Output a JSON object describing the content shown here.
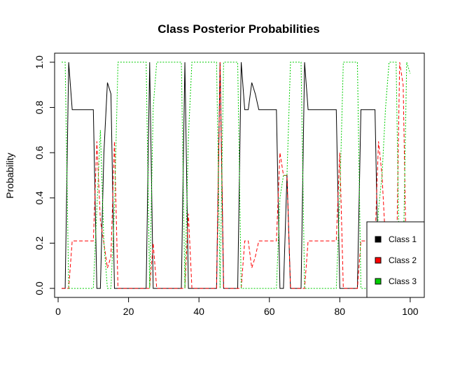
{
  "chart_data": {
    "type": "line",
    "title": "Class Posterior Probabilities",
    "xlabel": "",
    "ylabel": "Probability",
    "xlim": [
      -1,
      104
    ],
    "ylim": [
      -0.04,
      1.04
    ],
    "x_ticks": [
      0,
      20,
      40,
      60,
      80,
      100
    ],
    "x_tick_labels": [
      "0",
      "20",
      "40",
      "60",
      "80",
      "100"
    ],
    "y_ticks": [
      0.0,
      0.2,
      0.4,
      0.6,
      0.8,
      1.0
    ],
    "y_tick_labels": [
      "0.0",
      "0.2",
      "0.4",
      "0.6",
      "0.8",
      "1.0"
    ],
    "grid": false,
    "legend": {
      "position": "bottom-right",
      "entries": [
        {
          "label": "Class 1",
          "color": "#000000"
        },
        {
          "label": "Class 2",
          "color": "#ff0000"
        },
        {
          "label": "Class 3",
          "color": "#00cd00"
        }
      ]
    },
    "x": [
      1,
      2,
      3,
      4,
      5,
      6,
      7,
      8,
      9,
      10,
      11,
      12,
      13,
      14,
      15,
      16,
      17,
      18,
      19,
      20,
      21,
      22,
      23,
      24,
      25,
      26,
      27,
      28,
      29,
      30,
      31,
      32,
      33,
      34,
      35,
      36,
      37,
      38,
      39,
      40,
      41,
      42,
      43,
      44,
      45,
      46,
      47,
      48,
      49,
      50,
      51,
      52,
      53,
      54,
      55,
      56,
      57,
      58,
      59,
      60,
      61,
      62,
      63,
      64,
      65,
      66,
      67,
      68,
      69,
      70,
      71,
      72,
      73,
      74,
      75,
      76,
      77,
      78,
      79,
      80,
      81,
      82,
      83,
      84,
      85,
      86,
      87,
      88,
      89,
      90,
      91,
      92,
      93,
      94,
      95,
      96,
      97,
      98,
      99,
      100
    ],
    "series": [
      {
        "name": "Class 1",
        "color": "#000000",
        "dash": "solid",
        "values": [
          0,
          0,
          1,
          0.79,
          0.79,
          0.79,
          0.79,
          0.79,
          0.79,
          0.79,
          0,
          0,
          0.6,
          0.91,
          0.86,
          0,
          0,
          0,
          0,
          0,
          0,
          0,
          0,
          0,
          0,
          1,
          0,
          0,
          0,
          0,
          0,
          0,
          0,
          0,
          0,
          1,
          0,
          0,
          0,
          0,
          0,
          0,
          0,
          0,
          0,
          1,
          0,
          0,
          0,
          0,
          0,
          1,
          0.79,
          0.79,
          0.91,
          0.86,
          0.79,
          0.79,
          0.79,
          0.79,
          0.79,
          0.79,
          0,
          0,
          0.5,
          0,
          0,
          0,
          0,
          1,
          0.79,
          0.79,
          0.79,
          0.79,
          0.79,
          0.79,
          0.79,
          0.79,
          0.79,
          0,
          0,
          0,
          0,
          0,
          0,
          0.79,
          0.79,
          0.79,
          0.79,
          0.79,
          0,
          0,
          0,
          0,
          0,
          0,
          0,
          0,
          0,
          0
        ]
      },
      {
        "name": "Class 2",
        "color": "#ff0000",
        "dash": "5,3",
        "values": [
          0,
          0,
          0,
          0.21,
          0.21,
          0.21,
          0.21,
          0.21,
          0.21,
          0.21,
          0.65,
          0.3,
          0.2,
          0.09,
          0.14,
          0.65,
          0,
          0,
          0,
          0,
          0,
          0,
          0,
          0,
          0,
          0,
          0.2,
          0,
          0,
          0,
          0,
          0,
          0,
          0,
          0,
          0,
          0.33,
          0,
          0,
          0,
          0,
          0,
          0,
          0,
          0,
          1,
          0,
          0,
          0,
          0,
          0,
          0,
          0.21,
          0.21,
          0.09,
          0.14,
          0.21,
          0.21,
          0.21,
          0.21,
          0.21,
          0.21,
          0.6,
          0.5,
          0.5,
          0,
          0,
          0,
          0,
          0,
          0.21,
          0.21,
          0.21,
          0.21,
          0.21,
          0.21,
          0.21,
          0.21,
          0.21,
          0.6,
          0,
          0,
          0,
          0,
          0,
          0.21,
          0.21,
          0.21,
          0.21,
          0.21,
          0.65,
          0.5,
          0.2,
          0,
          0,
          0,
          1,
          0.9,
          0,
          0
        ]
      },
      {
        "name": "Class 3",
        "color": "#00cd00",
        "dash": "2,2",
        "values": [
          1,
          1,
          0,
          0,
          0,
          0,
          0,
          0,
          0,
          0,
          0.35,
          0.7,
          0.2,
          0,
          0,
          0.35,
          1,
          1,
          1,
          1,
          1,
          1,
          1,
          1,
          1,
          0,
          0.8,
          1,
          1,
          1,
          1,
          1,
          1,
          1,
          1,
          0,
          0.67,
          1,
          1,
          1,
          1,
          1,
          1,
          1,
          1,
          0,
          1,
          1,
          1,
          1,
          1,
          0,
          0,
          0,
          0,
          0,
          0,
          0,
          0,
          0,
          0,
          0,
          0.4,
          0.5,
          0.5,
          1,
          1,
          1,
          1,
          0,
          0,
          0,
          0,
          0,
          0,
          0,
          0,
          0,
          0,
          0.4,
          1,
          1,
          1,
          1,
          1,
          0,
          0,
          0,
          0,
          0,
          0.35,
          0.5,
          0.8,
          1,
          1,
          1,
          0,
          0.1,
          1,
          0.95
        ]
      }
    ]
  }
}
